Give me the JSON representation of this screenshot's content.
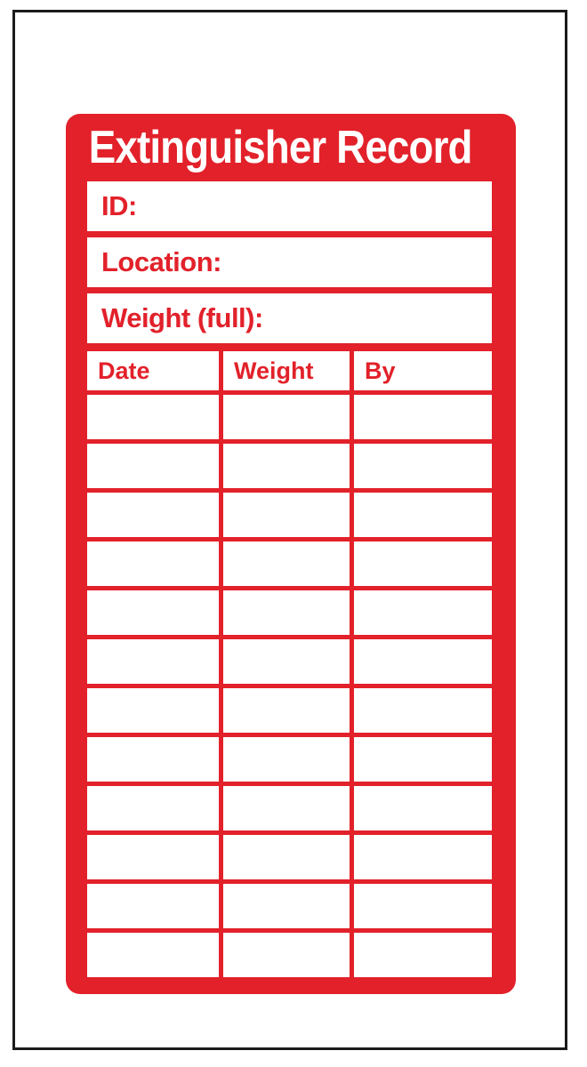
{
  "colors": {
    "accent_red": "#e2212a",
    "frame_black": "#1b1b1b",
    "white": "#ffffff"
  },
  "label": {
    "title": "Extinguisher Record",
    "fields": [
      {
        "label": "ID:",
        "value": ""
      },
      {
        "label": "Location:",
        "value": ""
      },
      {
        "label": "Weight (full):",
        "value": ""
      }
    ],
    "table": {
      "columns": [
        "Date",
        "Weight",
        "By"
      ],
      "rows": [
        [
          "",
          "",
          ""
        ],
        [
          "",
          "",
          ""
        ],
        [
          "",
          "",
          ""
        ],
        [
          "",
          "",
          ""
        ],
        [
          "",
          "",
          ""
        ],
        [
          "",
          "",
          ""
        ],
        [
          "",
          "",
          ""
        ],
        [
          "",
          "",
          ""
        ],
        [
          "",
          "",
          ""
        ],
        [
          "",
          "",
          ""
        ],
        [
          "",
          "",
          ""
        ],
        [
          "",
          "",
          ""
        ]
      ]
    }
  }
}
